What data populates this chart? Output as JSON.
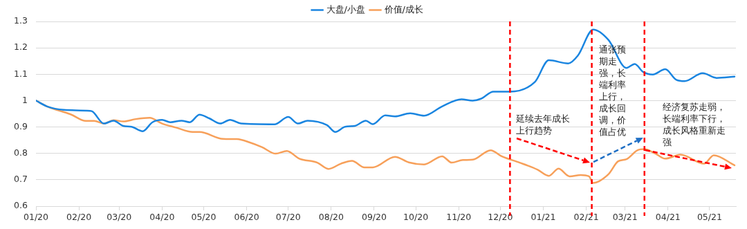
{
  "chart_data": {
    "type": "line",
    "legend": "top",
    "grid": "y",
    "marker": "none",
    "line_style": "solid",
    "xlim": [
      "2020-01-01",
      "2021-05-20"
    ],
    "xticks": [
      {
        "value": "2020-01-01",
        "label": "01/20"
      },
      {
        "value": "2020-02-01",
        "label": "02/20"
      },
      {
        "value": "2020-03-01",
        "label": "03/20"
      },
      {
        "value": "2020-04-01",
        "label": "04/20"
      },
      {
        "value": "2020-05-01",
        "label": "05/20"
      },
      {
        "value": "2020-06-01",
        "label": "06/20"
      },
      {
        "value": "2020-07-01",
        "label": "07/20"
      },
      {
        "value": "2020-08-01",
        "label": "08/20"
      },
      {
        "value": "2020-09-01",
        "label": "09/20"
      },
      {
        "value": "2020-10-01",
        "label": "10/20"
      },
      {
        "value": "2020-11-01",
        "label": "11/20"
      },
      {
        "value": "2020-12-01",
        "label": "12/20"
      },
      {
        "value": "2021-01-01",
        "label": "01/21"
      },
      {
        "value": "2021-02-01",
        "label": "02/21"
      },
      {
        "value": "2021-03-01",
        "label": "03/21"
      },
      {
        "value": "2021-04-01",
        "label": "04/21"
      },
      {
        "value": "2021-05-01",
        "label": "05/21"
      }
    ],
    "ylim": [
      0.6,
      1.3
    ],
    "yticks": [
      0.6,
      0.7,
      0.8,
      0.9,
      1,
      1.1,
      1.2,
      1.3
    ],
    "series": [
      {
        "name": "大盘/小盘",
        "color": "#1a85e0",
        "x": [
          "2020-01-01",
          "2020-01-09",
          "2020-01-21",
          "2020-02-09",
          "2020-02-11",
          "2020-02-19",
          "2020-02-26",
          "2020-03-04",
          "2020-03-10",
          "2020-03-18",
          "2020-03-25",
          "2020-04-01",
          "2020-04-07",
          "2020-04-15",
          "2020-04-21",
          "2020-04-28",
          "2020-05-05",
          "2020-05-13",
          "2020-05-20",
          "2020-05-28",
          "2020-06-21",
          "2020-07-01",
          "2020-07-08",
          "2020-07-15",
          "2020-07-29",
          "2020-08-04",
          "2020-08-11",
          "2020-08-18",
          "2020-08-26",
          "2020-08-31",
          "2020-09-09",
          "2020-09-16",
          "2020-09-27",
          "2020-10-07",
          "2020-10-20",
          "2020-11-03",
          "2020-11-11",
          "2020-11-17",
          "2020-11-26",
          "2020-12-08",
          "2020-12-26",
          "2021-01-05",
          "2021-01-19",
          "2021-01-26",
          "2021-02-06",
          "2021-02-17",
          "2021-03-02",
          "2021-03-08",
          "2021-03-14",
          "2021-03-21",
          "2021-03-30",
          "2021-04-07",
          "2021-04-13",
          "2021-04-26",
          "2021-05-06",
          "2021-05-19"
        ],
        "values": [
          1.0,
          0.978,
          0.965,
          0.961,
          0.958,
          0.913,
          0.924,
          0.904,
          0.901,
          0.884,
          0.918,
          0.927,
          0.918,
          0.924,
          0.918,
          0.947,
          0.933,
          0.913,
          0.927,
          0.913,
          0.91,
          0.938,
          0.913,
          0.924,
          0.907,
          0.881,
          0.901,
          0.904,
          0.924,
          0.911,
          0.944,
          0.94,
          0.952,
          0.943,
          0.978,
          1.005,
          1.0,
          1.007,
          1.034,
          1.034,
          1.071,
          1.153,
          1.141,
          1.171,
          1.269,
          1.23,
          1.124,
          1.139,
          1.109,
          1.099,
          1.119,
          1.079,
          1.074,
          1.104,
          1.086,
          1.091
        ]
      },
      {
        "name": "价值/成长",
        "color": "#f7a05a",
        "x": [
          "2020-01-01",
          "2020-01-09",
          "2020-01-26",
          "2020-02-06",
          "2020-02-12",
          "2020-02-19",
          "2020-02-26",
          "2020-03-04",
          "2020-03-13",
          "2020-03-23",
          "2020-04-01",
          "2020-04-11",
          "2020-04-23",
          "2020-04-28",
          "2020-05-15",
          "2020-05-25",
          "2020-06-03",
          "2020-06-12",
          "2020-06-22",
          "2020-06-30",
          "2020-07-09",
          "2020-07-22",
          "2020-07-30",
          "2020-08-08",
          "2020-08-16",
          "2020-08-25",
          "2020-08-31",
          "2020-09-16",
          "2020-09-26",
          "2020-10-07",
          "2020-10-20",
          "2020-10-27",
          "2020-11-04",
          "2020-11-11",
          "2020-11-24",
          "2020-12-02",
          "2020-12-15",
          "2020-12-28",
          "2021-01-05",
          "2021-01-12",
          "2021-01-20",
          "2021-01-28",
          "2021-02-03",
          "2021-02-06",
          "2021-02-17",
          "2021-02-24",
          "2021-03-02",
          "2021-03-10",
          "2021-03-15",
          "2021-03-23",
          "2021-03-30",
          "2021-04-10",
          "2021-04-27",
          "2021-05-04",
          "2021-05-19"
        ],
        "values": [
          1.0,
          0.978,
          0.948,
          0.923,
          0.923,
          0.913,
          0.926,
          0.921,
          0.93,
          0.935,
          0.913,
          0.898,
          0.881,
          0.881,
          0.855,
          0.854,
          0.842,
          0.824,
          0.799,
          0.809,
          0.78,
          0.765,
          0.741,
          0.761,
          0.772,
          0.747,
          0.747,
          0.787,
          0.766,
          0.758,
          0.789,
          0.765,
          0.775,
          0.776,
          0.812,
          0.789,
          0.765,
          0.738,
          0.715,
          0.742,
          0.713,
          0.718,
          0.713,
          0.688,
          0.721,
          0.77,
          0.778,
          0.812,
          0.816,
          0.799,
          0.78,
          0.795,
          0.761,
          0.793,
          0.755
        ]
      }
    ],
    "ref_lines": [
      {
        "axis": "x",
        "value": "2020-12-08",
        "color": "#ff0000",
        "line_style": "dashed"
      },
      {
        "axis": "x",
        "value": "2021-02-05",
        "color": "#ff0000",
        "line_style": "dashed"
      },
      {
        "axis": "x",
        "value": "2021-03-15",
        "color": "#ff0000",
        "line_style": "dashed"
      }
    ],
    "annotations": [
      "延续去年成长上行趋势",
      {
        "text": "通张预期走强，长端利率上行，成长回调，价值占优",
        "x": "2021-03-14",
        "y": 0.86
      },
      "经济复苏走弱，长端利率下行，成长风格重新走强"
    ]
  }
}
